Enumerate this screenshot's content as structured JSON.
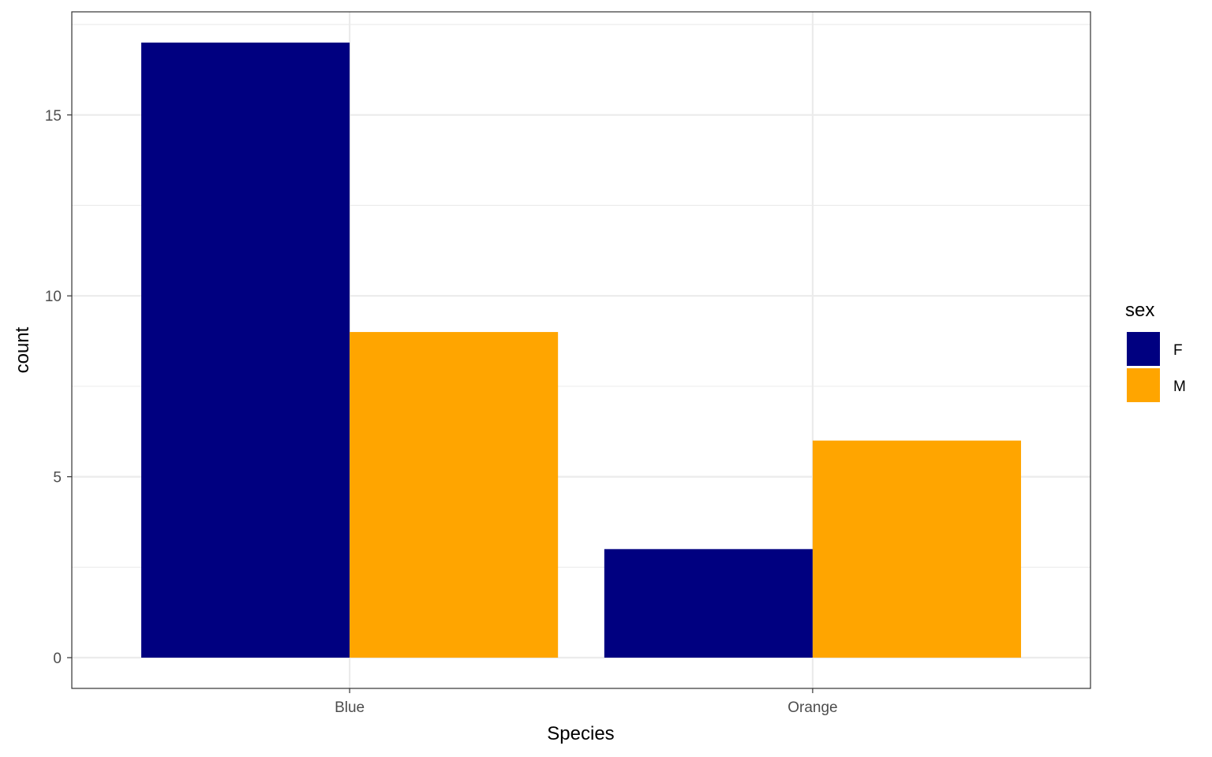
{
  "chart_data": {
    "type": "bar",
    "categories": [
      "Blue",
      "Orange"
    ],
    "series": [
      {
        "name": "F",
        "values": [
          17,
          3
        ],
        "color": "#000080"
      },
      {
        "name": "M",
        "values": [
          9,
          6
        ],
        "color": "#FFA500"
      }
    ],
    "xlabel": "Species",
    "ylabel": "count",
    "ylim": [
      -0.85,
      17.85
    ],
    "yticks": [
      0,
      5,
      10,
      15
    ],
    "yticklabels": [
      "0",
      "5",
      "10",
      "15"
    ],
    "grid": true,
    "legend": {
      "title": "sex",
      "position": "right",
      "entries": [
        "F",
        "M"
      ]
    }
  }
}
